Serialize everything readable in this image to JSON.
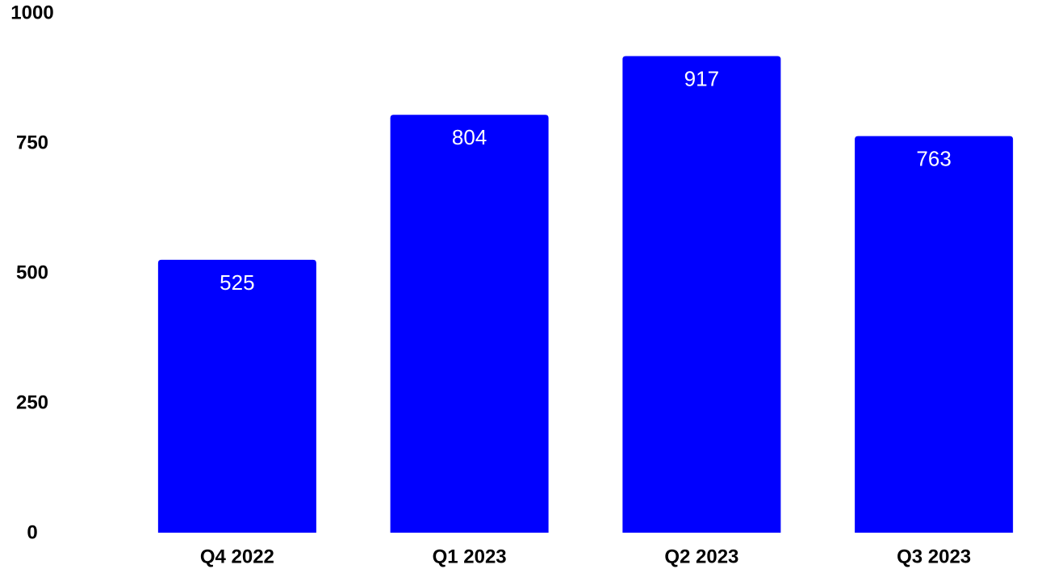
{
  "chart_data": {
    "type": "bar",
    "categories": [
      "Q4 2022",
      "Q1 2023",
      "Q2 2023",
      "Q3 2023"
    ],
    "values": [
      525,
      804,
      917,
      763
    ],
    "data_labels": [
      "525",
      "804",
      "917",
      "763"
    ],
    "title": "",
    "xlabel": "",
    "ylabel": "",
    "ylim": [
      0,
      1000
    ],
    "yticks": [
      0,
      250,
      500,
      750,
      1000
    ],
    "ytick_labels": [
      "0",
      "250",
      "500",
      "750",
      "1000"
    ],
    "grid": false,
    "legend": "none",
    "bar_color": "#0000ff",
    "data_label_color": "#ffffff",
    "axis_label_color": "#000000"
  }
}
